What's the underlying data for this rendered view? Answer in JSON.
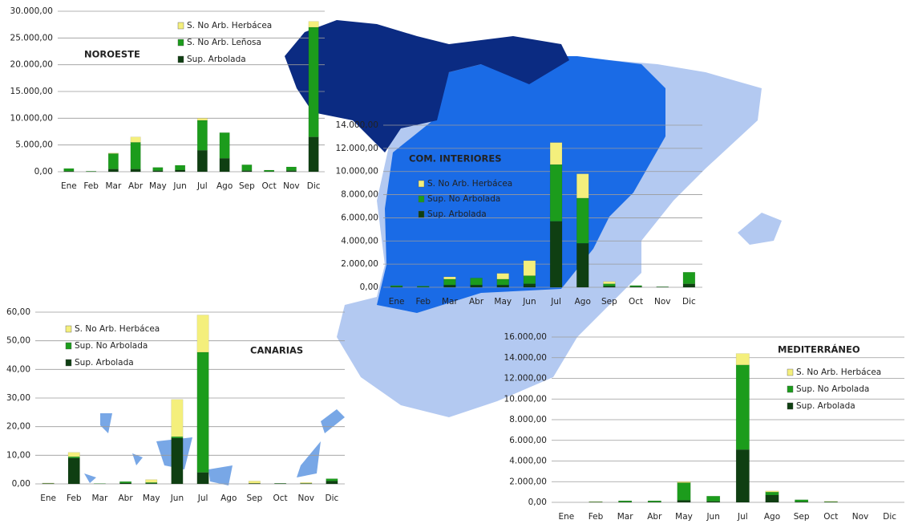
{
  "chart_data": [
    {
      "type": "bar",
      "stacked": true,
      "title": "NOROESTE",
      "categories": [
        "Ene",
        "Feb",
        "Mar",
        "Abr",
        "May",
        "Jun",
        "Jul",
        "Ago",
        "Sep",
        "Oct",
        "Nov",
        "Dic"
      ],
      "series": [
        {
          "name": "Sup. Arbolada",
          "color": "#0f3f12",
          "values": [
            100,
            20,
            500,
            500,
            200,
            300,
            4000,
            2500,
            200,
            50,
            200,
            6500
          ]
        },
        {
          "name": "S. No Arb. Leñosa",
          "color": "#1c9c1c",
          "values": [
            500,
            80,
            2900,
            5000,
            600,
            900,
            5600,
            4800,
            1100,
            250,
            700,
            20500
          ]
        },
        {
          "name": "S. No Arb. Herbácea",
          "color": "#f4ef7c",
          "values": [
            0,
            0,
            100,
            1000,
            0,
            0,
            400,
            0,
            0,
            0,
            0,
            1100
          ]
        }
      ],
      "ylim": [
        0,
        30000
      ],
      "yticks": [
        {
          "value": 0,
          "label": "0,00"
        },
        {
          "value": 5000,
          "label": "5.000,00"
        },
        {
          "value": 10000,
          "label": "10.000,00"
        },
        {
          "value": 15000,
          "label": "15.000,00"
        },
        {
          "value": 20000,
          "label": "20.000,00"
        },
        {
          "value": 25000,
          "label": "25.000,00"
        },
        {
          "value": 30000,
          "label": "30.000,00"
        }
      ],
      "grid": true
    },
    {
      "type": "bar",
      "stacked": true,
      "title": "COM. INTERIORES",
      "categories": [
        "Ene",
        "Feb",
        "Mar",
        "Abr",
        "May",
        "Jun",
        "Jul",
        "Ago",
        "Sep",
        "Oct",
        "Nov",
        "Dic"
      ],
      "series": [
        {
          "name": "Sup. Arbolada",
          "color": "#0f3f12",
          "values": [
            50,
            30,
            200,
            200,
            200,
            300,
            5700,
            3800,
            100,
            50,
            20,
            300
          ]
        },
        {
          "name": "Sup. No Arbolada",
          "color": "#1c9c1c",
          "values": [
            100,
            70,
            500,
            600,
            500,
            700,
            4900,
            3900,
            200,
            100,
            30,
            1000
          ]
        },
        {
          "name": "S. No Arb. Herbácea",
          "color": "#f4ef7c",
          "values": [
            0,
            0,
            200,
            0,
            500,
            1300,
            1900,
            2100,
            200,
            0,
            0,
            0
          ]
        }
      ],
      "ylim": [
        0,
        14000
      ],
      "yticks": [
        {
          "value": 0,
          "label": "0,00"
        },
        {
          "value": 2000,
          "label": "2.000,00"
        },
        {
          "value": 4000,
          "label": "4.000,00"
        },
        {
          "value": 6000,
          "label": "6.000,00"
        },
        {
          "value": 8000,
          "label": "8.000,00"
        },
        {
          "value": 10000,
          "label": "10.000,00"
        },
        {
          "value": 12000,
          "label": "12.000,00"
        },
        {
          "value": 14000,
          "label": "14.000,00"
        }
      ],
      "grid": true
    },
    {
      "type": "bar",
      "stacked": true,
      "title": "CANARIAS",
      "categories": [
        "Ene",
        "Feb",
        "Mar",
        "Abr",
        "May",
        "Jun",
        "Jul",
        "Ago",
        "Sep",
        "Oct",
        "Nov",
        "Dic"
      ],
      "series": [
        {
          "name": "Sup. Arbolada",
          "color": "#0f3f12",
          "values": [
            0.1,
            9,
            0,
            0.3,
            0.2,
            16,
            4,
            0,
            0.2,
            0.1,
            0.1,
            1
          ]
        },
        {
          "name": "Sup. No Arbolada",
          "color": "#1c9c1c",
          "values": [
            0.1,
            0.5,
            0.1,
            0.5,
            0.3,
            0.5,
            42,
            0,
            0,
            0.1,
            0.1,
            0.8
          ]
        },
        {
          "name": "S. No Arb. Herbácea",
          "color": "#f4ef7c",
          "values": [
            0.1,
            1.5,
            0,
            0,
            1,
            13,
            13,
            0,
            0.8,
            0,
            0.3,
            0
          ]
        }
      ],
      "ylim": [
        0,
        60
      ],
      "yticks": [
        {
          "value": 0,
          "label": "0,00"
        },
        {
          "value": 10,
          "label": "10,00"
        },
        {
          "value": 20,
          "label": "20,00"
        },
        {
          "value": 30,
          "label": "30,00"
        },
        {
          "value": 40,
          "label": "40,00"
        },
        {
          "value": 50,
          "label": "50,00"
        },
        {
          "value": 60,
          "label": "60,00"
        }
      ],
      "grid": true
    },
    {
      "type": "bar",
      "stacked": true,
      "title": "MEDITERRÁNEO",
      "categories": [
        "Ene",
        "Feb",
        "Mar",
        "Abr",
        "May",
        "Jun",
        "Jul",
        "Ago",
        "Sep",
        "Oct",
        "Nov",
        "Dic"
      ],
      "series": [
        {
          "name": "Sup. Arbolada",
          "color": "#0f3f12",
          "values": [
            0,
            20,
            30,
            30,
            200,
            100,
            5100,
            700,
            50,
            20,
            0,
            0
          ]
        },
        {
          "name": "Sup. No Arbolada",
          "color": "#1c9c1c",
          "values": [
            0,
            40,
            120,
            120,
            1700,
            500,
            8200,
            300,
            200,
            50,
            0,
            0
          ]
        },
        {
          "name": "S. No Arb. Herbácea",
          "color": "#f4ef7c",
          "values": [
            0,
            20,
            0,
            0,
            100,
            0,
            1100,
            100,
            0,
            30,
            0,
            0
          ]
        }
      ],
      "ylim": [
        0,
        16000
      ],
      "yticks": [
        {
          "value": 0,
          "label": "0,00"
        },
        {
          "value": 2000,
          "label": "2.000,00"
        },
        {
          "value": 4000,
          "label": "4.000,00"
        },
        {
          "value": 6000,
          "label": "6.000,00"
        },
        {
          "value": 8000,
          "label": "8.000,00"
        },
        {
          "value": 10000,
          "label": "10.000,00"
        },
        {
          "value": 12000,
          "label": "12.000,00"
        },
        {
          "value": 14000,
          "label": "14.000,00"
        },
        {
          "value": 16000,
          "label": "16.000,00"
        }
      ],
      "grid": true
    }
  ]
}
